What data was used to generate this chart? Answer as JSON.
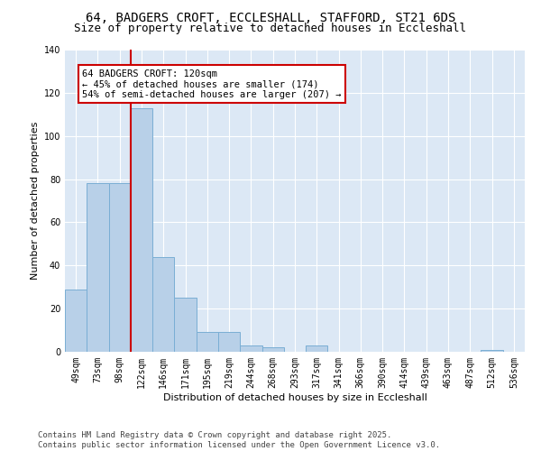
{
  "title_line1": "64, BADGERS CROFT, ECCLESHALL, STAFFORD, ST21 6DS",
  "title_line2": "Size of property relative to detached houses in Eccleshall",
  "xlabel": "Distribution of detached houses by size in Eccleshall",
  "ylabel": "Number of detached properties",
  "categories": [
    "49sqm",
    "73sqm",
    "98sqm",
    "122sqm",
    "146sqm",
    "171sqm",
    "195sqm",
    "219sqm",
    "244sqm",
    "268sqm",
    "293sqm",
    "317sqm",
    "341sqm",
    "366sqm",
    "390sqm",
    "414sqm",
    "439sqm",
    "463sqm",
    "487sqm",
    "512sqm",
    "536sqm"
  ],
  "values": [
    29,
    78,
    78,
    113,
    44,
    25,
    9,
    9,
    3,
    2,
    0,
    3,
    0,
    0,
    0,
    0,
    0,
    0,
    0,
    1,
    0
  ],
  "bar_color": "#b8d0e8",
  "bar_edge_color": "#7aaed4",
  "subject_line_index": 3,
  "subject_line_color": "#cc0000",
  "annotation_text": "64 BADGERS CROFT: 120sqm\n← 45% of detached houses are smaller (174)\n54% of semi-detached houses are larger (207) →",
  "annotation_box_facecolor": "#ffffff",
  "annotation_box_edgecolor": "#cc0000",
  "ylim": [
    0,
    140
  ],
  "yticks": [
    0,
    20,
    40,
    60,
    80,
    100,
    120,
    140
  ],
  "background_color": "#dce8f5",
  "grid_color": "#ffffff",
  "fig_facecolor": "#ffffff",
  "footer_line1": "Contains HM Land Registry data © Crown copyright and database right 2025.",
  "footer_line2": "Contains public sector information licensed under the Open Government Licence v3.0.",
  "title_fontsize": 10,
  "subtitle_fontsize": 9,
  "axis_label_fontsize": 8,
  "tick_fontsize": 7,
  "annotation_fontsize": 7.5,
  "footer_fontsize": 6.5
}
